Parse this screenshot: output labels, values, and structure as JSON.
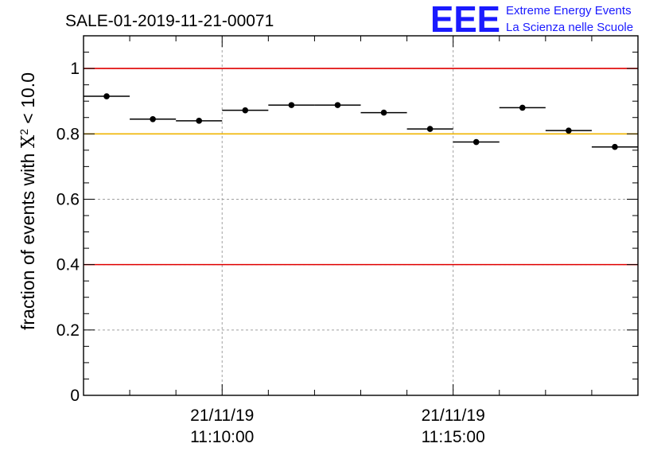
{
  "header": {
    "title": "SALE-01-2019-11-21-00071",
    "logo_mark": "EEE",
    "logo_line1": "Extreme Energy Events",
    "logo_line2": "La Scienza nelle Scuole"
  },
  "chart_data": {
    "type": "scatter",
    "title": "SALE-01-2019-11-21-00071",
    "xlabel": "",
    "ylabel": "fraction of events with χ² < 10.0",
    "ylabel_parts": {
      "pre": "fraction of events with ",
      "symbol": "X",
      "sup": "2",
      "post": " < 10.0"
    },
    "ylim": [
      0,
      1.1
    ],
    "yticks": [
      0,
      0.2,
      0.4,
      0.6,
      0.8,
      1
    ],
    "ytick_labels": [
      "0",
      "0.2",
      "0.4",
      "0.6",
      "0.8",
      "1"
    ],
    "xlim": [
      "11:07:00",
      "11:19:00"
    ],
    "xticks": [
      {
        "date": "21/11/19",
        "time": "11:10:00"
      },
      {
        "date": "21/11/19",
        "time": "11:15:00"
      }
    ],
    "grid": true,
    "reference_lines": [
      {
        "y": 1.0,
        "color": "#e00000"
      },
      {
        "y": 0.8,
        "color": "#f0b400"
      },
      {
        "y": 0.4,
        "color": "#e00000"
      }
    ],
    "x_bin_width": "00:01:00",
    "points": [
      {
        "x": "11:07:30",
        "y": 0.915
      },
      {
        "x": "11:08:30",
        "y": 0.845
      },
      {
        "x": "11:09:30",
        "y": 0.84
      },
      {
        "x": "11:10:30",
        "y": 0.872
      },
      {
        "x": "11:11:30",
        "y": 0.888
      },
      {
        "x": "11:12:30",
        "y": 0.888
      },
      {
        "x": "11:13:30",
        "y": 0.865
      },
      {
        "x": "11:14:30",
        "y": 0.815
      },
      {
        "x": "11:15:30",
        "y": 0.775
      },
      {
        "x": "11:16:30",
        "y": 0.88
      },
      {
        "x": "11:17:30",
        "y": 0.81
      },
      {
        "x": "11:18:30",
        "y": 0.76
      }
    ]
  }
}
